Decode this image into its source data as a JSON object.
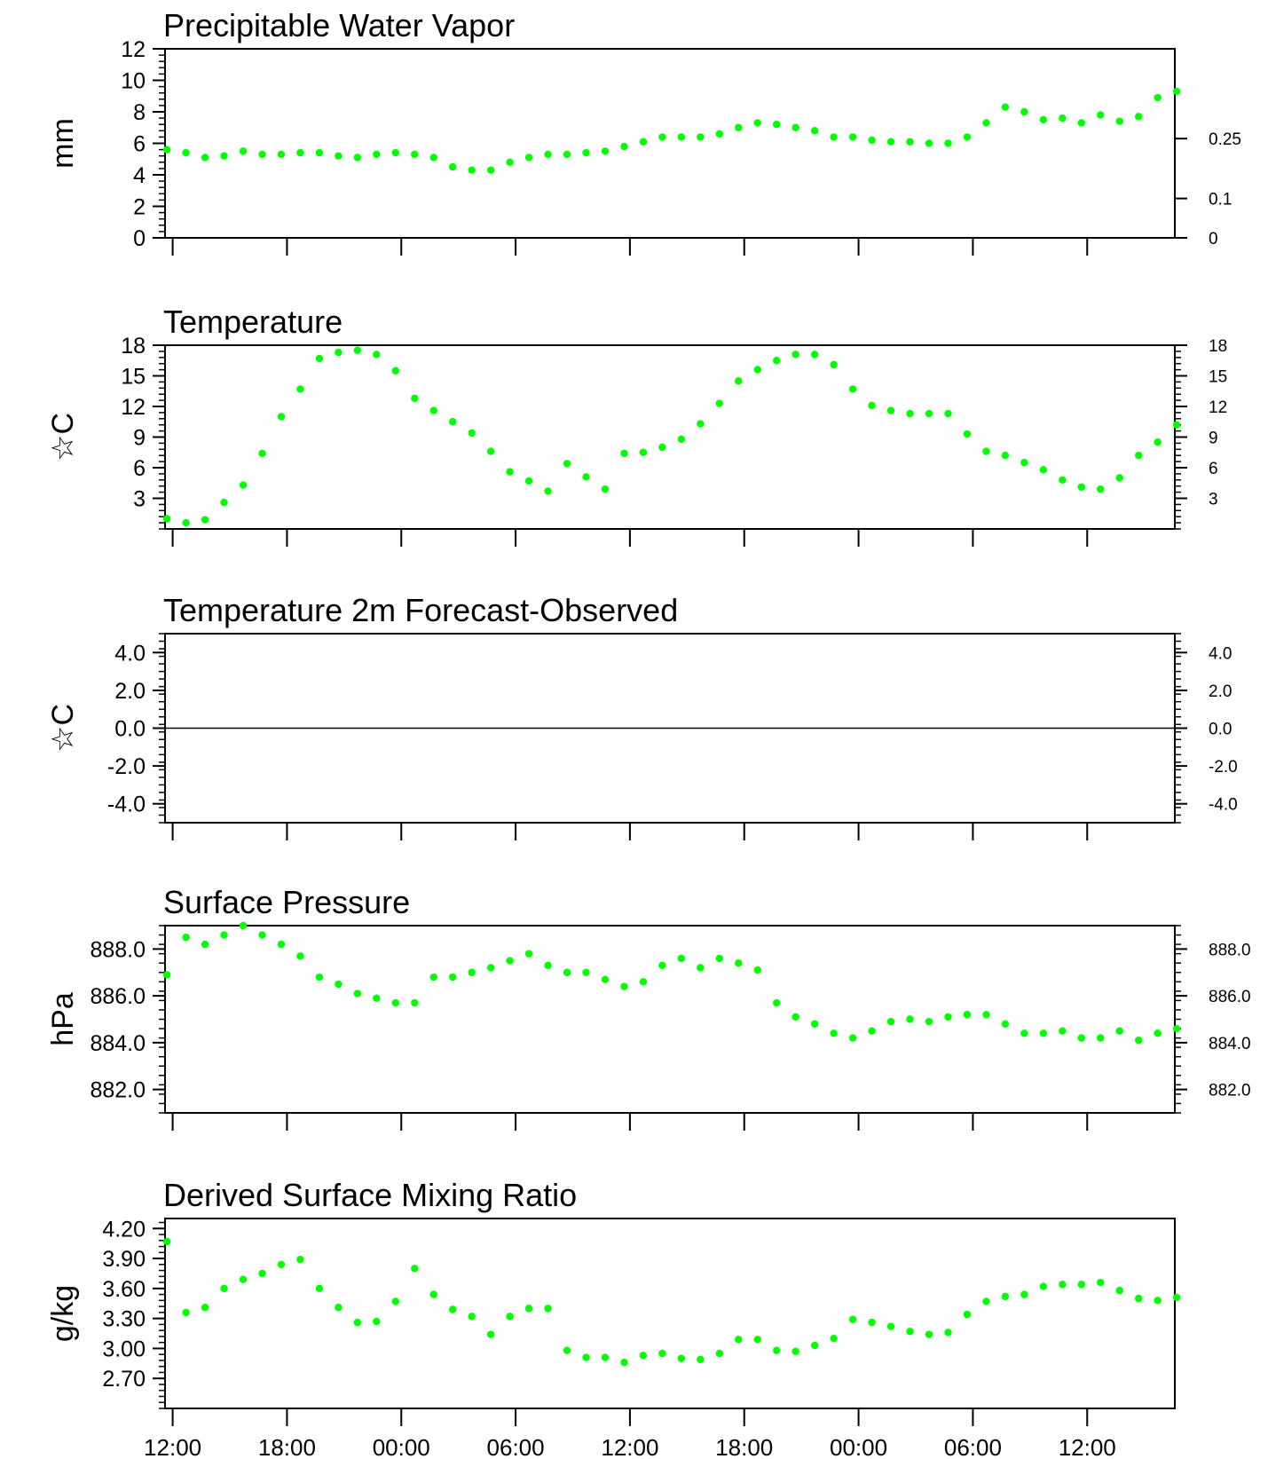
{
  "time_labels": [
    "12:00",
    "18:00",
    "00:00",
    "06:00",
    "12:00",
    "18:00",
    "00:00",
    "06:00",
    "12:00"
  ],
  "colors": {
    "points": "#00ff00",
    "axes": "#000000",
    "background": "#ffffff"
  },
  "chart_data": [
    {
      "type": "scatter",
      "title": "Precipitable Water Vapor",
      "ylabel": "mm",
      "ylim": [
        0,
        12
      ],
      "x_range_hours": [
        -0.3,
        52.5
      ],
      "yticks": [
        "0",
        "2",
        "4",
        "6",
        "8",
        "10",
        "12"
      ],
      "right_ticks": [
        {
          "value": 0,
          "label": "0"
        },
        {
          "value": 2.5,
          "label": "0.1"
        },
        {
          "value": 6.3,
          "label": "0.25"
        }
      ],
      "x": [
        -0.3,
        0.7,
        1.7,
        2.7,
        3.7,
        4.7,
        5.7,
        6.7,
        7.7,
        8.7,
        9.7,
        10.7,
        11.7,
        12.7,
        13.7,
        14.7,
        15.7,
        16.7,
        17.7,
        18.7,
        19.7,
        20.7,
        21.7,
        22.7,
        23.7,
        24.7,
        25.7,
        26.7,
        27.7,
        28.7,
        29.7,
        30.7,
        31.7,
        32.7,
        33.7,
        34.7,
        35.7,
        36.7,
        37.7,
        38.7,
        39.7,
        40.7,
        41.7,
        42.7,
        43.7,
        44.7,
        45.7,
        46.7,
        47.7,
        48.7,
        49.7,
        50.7,
        51.7,
        52.7
      ],
      "y": [
        5.6,
        5.4,
        5.1,
        5.2,
        5.5,
        5.3,
        5.3,
        5.4,
        5.4,
        5.2,
        5.1,
        5.3,
        5.4,
        5.3,
        5.1,
        4.5,
        4.3,
        4.3,
        4.8,
        5.1,
        5.3,
        5.3,
        5.4,
        5.5,
        5.8,
        6.1,
        6.4,
        6.4,
        6.4,
        6.6,
        7.0,
        7.3,
        7.2,
        7.0,
        6.8,
        6.4,
        6.4,
        6.2,
        6.1,
        6.1,
        6.0,
        6.0,
        6.4,
        7.3,
        8.3,
        8.0,
        7.5,
        7.6,
        7.3,
        7.8,
        7.4,
        7.7,
        8.9,
        9.3
      ]
    },
    {
      "type": "scatter",
      "title": "Temperature",
      "ylabel": "☆C",
      "ylim": [
        0,
        18
      ],
      "x_range_hours": [
        -0.3,
        52.5
      ],
      "yticks": [
        "3",
        "6",
        "9",
        "12",
        "15",
        "18"
      ],
      "right_ticks": [
        {
          "value": 3,
          "label": "3"
        },
        {
          "value": 6,
          "label": "6"
        },
        {
          "value": 9,
          "label": "9"
        },
        {
          "value": 12,
          "label": "12"
        },
        {
          "value": 15,
          "label": "15"
        },
        {
          "value": 18,
          "label": "18"
        }
      ],
      "x": [
        -0.3,
        0.7,
        1.7,
        2.7,
        3.7,
        4.7,
        5.7,
        6.7,
        7.7,
        8.7,
        9.7,
        10.7,
        11.7,
        12.7,
        13.7,
        14.7,
        15.7,
        16.7,
        17.7,
        18.7,
        19.7,
        20.7,
        21.7,
        22.7,
        23.7,
        24.7,
        25.7,
        26.7,
        27.7,
        28.7,
        29.7,
        30.7,
        31.7,
        32.7,
        33.7,
        34.7,
        35.7,
        36.7,
        37.7,
        38.7,
        39.7,
        40.7,
        41.7,
        42.7,
        43.7,
        44.7,
        45.7,
        46.7,
        47.7,
        48.7,
        49.7,
        50.7,
        51.7,
        52.7
      ],
      "y": [
        1.0,
        0.6,
        0.9,
        2.6,
        4.3,
        7.4,
        11.0,
        13.7,
        16.7,
        17.3,
        17.5,
        17.1,
        15.5,
        12.8,
        11.6,
        10.5,
        9.4,
        7.6,
        5.6,
        4.7,
        3.7,
        6.4,
        5.1,
        3.9,
        7.4,
        7.5,
        8.0,
        8.8,
        10.3,
        12.3,
        14.5,
        15.6,
        16.5,
        17.1,
        17.1,
        16.1,
        13.7,
        12.1,
        11.6,
        11.3,
        11.3,
        11.3,
        9.3,
        7.6,
        7.2,
        6.5,
        5.8,
        4.8,
        4.1,
        3.9,
        5.0,
        7.2,
        8.5,
        10.2
      ]
    },
    {
      "type": "line",
      "title": "Temperature 2m Forecast-Observed",
      "ylabel": "☆C",
      "ylim": [
        -5,
        5
      ],
      "x_range_hours": [
        -0.3,
        52.5
      ],
      "yticks": [
        "-4.0",
        "-2.0",
        "0.0",
        "2.0",
        "4.0"
      ],
      "right_ticks": [
        {
          "value": -4,
          "label": "-4.0"
        },
        {
          "value": -2,
          "label": "-2.0"
        },
        {
          "value": 0,
          "label": "0.0"
        },
        {
          "value": 2,
          "label": "2.0"
        },
        {
          "value": 4,
          "label": "4.0"
        }
      ],
      "reference_line": 0,
      "x": [],
      "y": []
    },
    {
      "type": "scatter",
      "title": "Surface Pressure",
      "ylabel": "hPa",
      "ylim": [
        881,
        889
      ],
      "x_range_hours": [
        -0.3,
        52.5
      ],
      "yticks": [
        "882.0",
        "884.0",
        "886.0",
        "888.0"
      ],
      "right_ticks": [
        {
          "value": 882,
          "label": "882.0"
        },
        {
          "value": 884,
          "label": "884.0"
        },
        {
          "value": 886,
          "label": "886.0"
        },
        {
          "value": 888,
          "label": "888.0"
        }
      ],
      "x": [
        -0.3,
        0.7,
        1.7,
        2.7,
        3.7,
        4.7,
        5.7,
        6.7,
        7.7,
        8.7,
        9.7,
        10.7,
        11.7,
        12.7,
        13.7,
        14.7,
        15.7,
        16.7,
        17.7,
        18.7,
        19.7,
        20.7,
        21.7,
        22.7,
        23.7,
        24.7,
        25.7,
        26.7,
        27.7,
        28.7,
        29.7,
        30.7,
        31.7,
        32.7,
        33.7,
        34.7,
        35.7,
        36.7,
        37.7,
        38.7,
        39.7,
        40.7,
        41.7,
        42.7,
        43.7,
        44.7,
        45.7,
        46.7,
        47.7,
        48.7,
        49.7,
        50.7,
        51.7,
        52.7
      ],
      "y": [
        886.9,
        888.5,
        888.2,
        888.6,
        889.0,
        888.6,
        888.2,
        887.7,
        886.8,
        886.5,
        886.1,
        885.9,
        885.7,
        885.7,
        886.8,
        886.8,
        887.0,
        887.2,
        887.5,
        887.8,
        887.3,
        887.0,
        887.0,
        886.7,
        886.4,
        886.6,
        887.3,
        887.6,
        887.2,
        887.6,
        887.4,
        887.1,
        885.7,
        885.1,
        884.8,
        884.4,
        884.2,
        884.5,
        884.9,
        885.0,
        884.9,
        885.1,
        885.2,
        885.2,
        884.8,
        884.4,
        884.4,
        884.5,
        884.2,
        884.2,
        884.5,
        884.1,
        884.4,
        884.6
      ]
    },
    {
      "type": "scatter",
      "title": "Derived Surface Mixing Ratio",
      "ylabel": "g/kg",
      "ylim": [
        2.4,
        4.3
      ],
      "x_range_hours": [
        -0.3,
        52.5
      ],
      "yticks": [
        "2.70",
        "3.00",
        "3.30",
        "3.60",
        "3.90",
        "4.20"
      ],
      "right_ticks": [],
      "x": [
        -0.3,
        0.7,
        1.7,
        2.7,
        3.7,
        4.7,
        5.7,
        6.7,
        7.7,
        8.7,
        9.7,
        10.7,
        11.7,
        12.7,
        13.7,
        14.7,
        15.7,
        16.7,
        17.7,
        18.7,
        19.7,
        20.7,
        21.7,
        22.7,
        23.7,
        24.7,
        25.7,
        26.7,
        27.7,
        28.7,
        29.7,
        30.7,
        31.7,
        32.7,
        33.7,
        34.7,
        35.7,
        36.7,
        37.7,
        38.7,
        39.7,
        40.7,
        41.7,
        42.7,
        43.7,
        44.7,
        45.7,
        46.7,
        47.7,
        48.7,
        49.7,
        50.7,
        51.7,
        52.7
      ],
      "y": [
        4.07,
        3.36,
        3.41,
        3.6,
        3.69,
        3.75,
        3.84,
        3.89,
        3.6,
        3.41,
        3.26,
        3.27,
        3.47,
        3.8,
        3.54,
        3.39,
        3.32,
        3.14,
        3.32,
        3.4,
        3.4,
        2.98,
        2.91,
        2.91,
        2.86,
        2.93,
        2.95,
        2.9,
        2.89,
        2.95,
        3.09,
        3.09,
        2.98,
        2.97,
        3.03,
        3.1,
        3.29,
        3.26,
        3.22,
        3.17,
        3.14,
        3.16,
        3.34,
        3.47,
        3.52,
        3.54,
        3.62,
        3.64,
        3.64,
        3.66,
        3.58,
        3.5,
        3.48,
        3.51
      ]
    }
  ]
}
